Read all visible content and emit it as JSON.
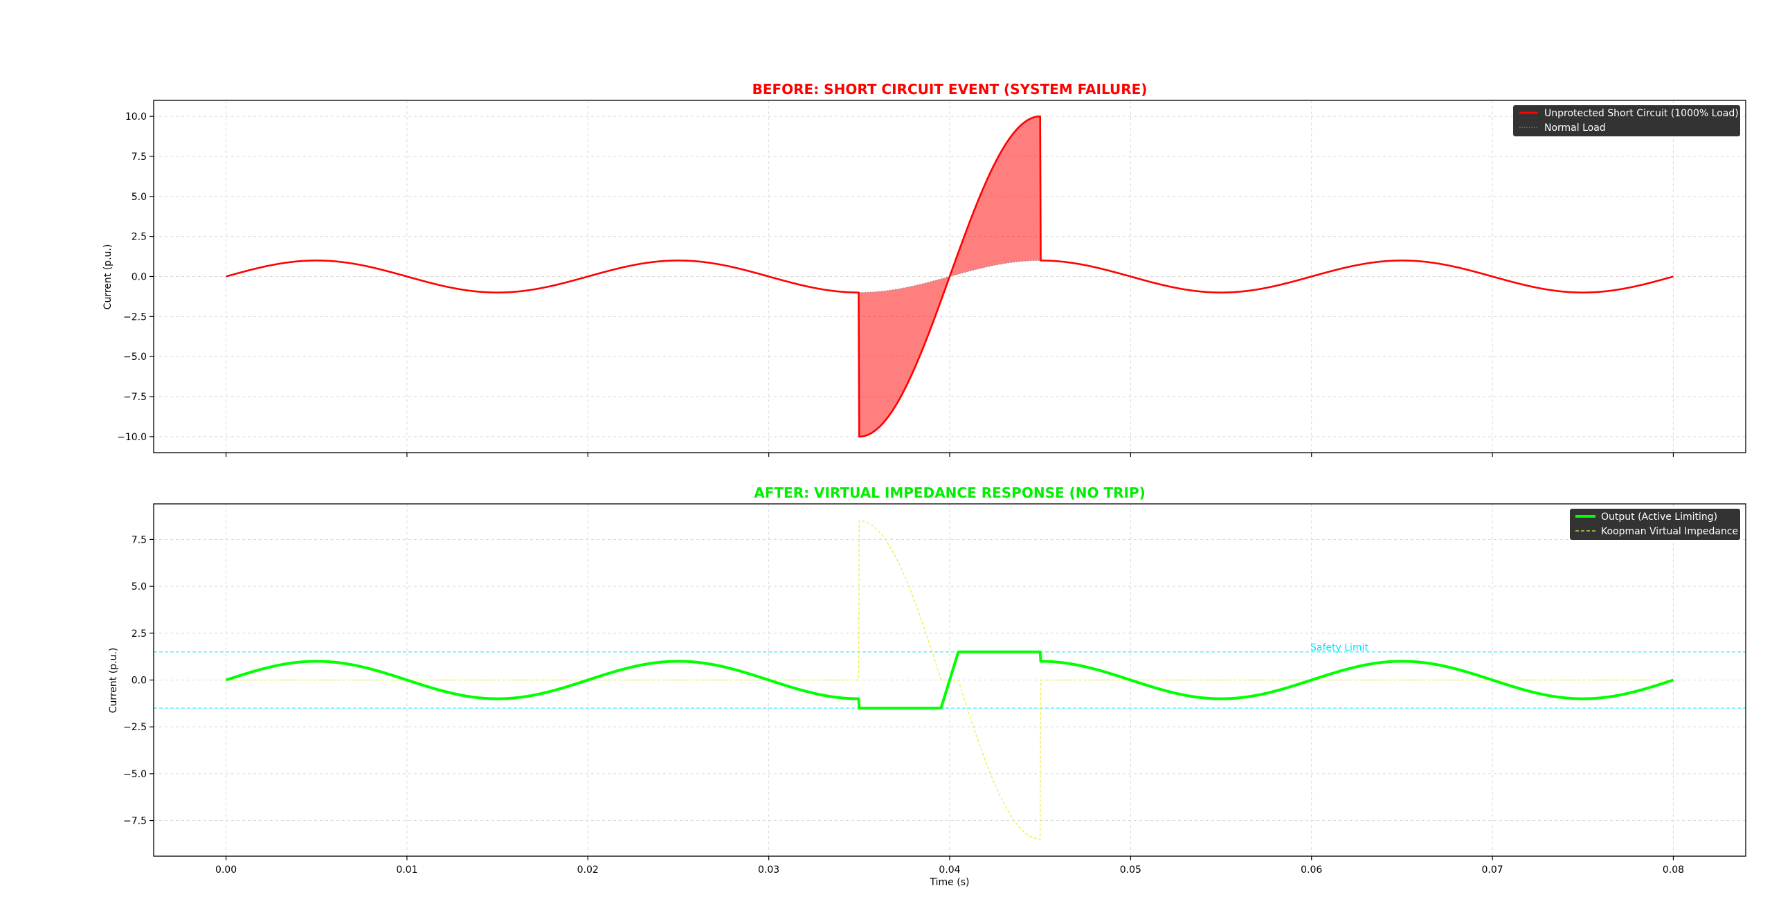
{
  "chart_data": [
    {
      "type": "line",
      "title": "BEFORE: SHORT CIRCUIT EVENT (SYSTEM FAILURE)",
      "title_color": "#ff0000",
      "xlabel": "",
      "ylabel": "Current (p.u.)",
      "xlim": [
        -0.004,
        0.084
      ],
      "ylim": [
        -11.0,
        11.0
      ],
      "xticks": [
        0.0,
        0.01,
        0.02,
        0.03,
        0.04,
        0.05,
        0.06,
        0.07,
        0.08
      ],
      "xtick_labels": [],
      "yticks": [
        -10.0,
        -7.5,
        -5.0,
        -2.5,
        0.0,
        2.5,
        5.0,
        7.5,
        10.0
      ],
      "ytick_labels": [
        "−10.0",
        "−7.5",
        "−5.0",
        "−2.5",
        "0.0",
        "2.5",
        "5.0",
        "7.5",
        "10.0"
      ],
      "grid": true,
      "legend_position": "top-right",
      "legend_bg": "#333333",
      "signal": {
        "frequency_hz": 50,
        "amplitude": 1.0,
        "fault_start": 0.035,
        "fault_end": 0.045,
        "fault_gain": 10,
        "t_end": 0.08
      },
      "fill_between": {
        "between": [
          "Unprotected Short Circuit (1000% Load)",
          "Normal Load"
        ],
        "x_range": [
          0.035,
          0.045
        ],
        "color": "#ff0000",
        "alpha": 0.5
      },
      "series": [
        {
          "name": "Unprotected Short Circuit (1000% Load)",
          "color": "#ff0000",
          "style": "solid",
          "expr": "sin(2*pi*50*t) * (t in [0.035,0.045] ? 10 : 1)"
        },
        {
          "name": "Normal Load",
          "color": "#888888",
          "style": "dotted",
          "expr": "sin(2*pi*50*t)"
        }
      ]
    },
    {
      "type": "line",
      "title": "AFTER: VIRTUAL IMPEDANCE RESPONSE (NO TRIP)",
      "title_color": "#00ee00",
      "xlabel": "Time (s)",
      "ylabel": "Current (p.u.)",
      "xlim": [
        -0.004,
        0.084
      ],
      "ylim": [
        -9.4,
        9.4
      ],
      "xticks": [
        0.0,
        0.01,
        0.02,
        0.03,
        0.04,
        0.05,
        0.06,
        0.07,
        0.08
      ],
      "xtick_labels": [
        "0.00",
        "0.01",
        "0.02",
        "0.03",
        "0.04",
        "0.05",
        "0.06",
        "0.07",
        "0.08"
      ],
      "yticks": [
        -7.5,
        -5.0,
        -2.5,
        0.0,
        2.5,
        5.0,
        7.5
      ],
      "ytick_labels": [
        "−7.5",
        "−5.0",
        "−2.5",
        "0.0",
        "2.5",
        "5.0",
        "7.5"
      ],
      "grid": true,
      "legend_position": "top-right",
      "legend_bg": "#333333",
      "signal": {
        "frequency_hz": 50,
        "amplitude": 1.0,
        "fault_start": 0.035,
        "fault_end": 0.045,
        "fault_gain": 10,
        "limit": 1.5,
        "t_end": 0.08
      },
      "annotation": {
        "text": "Safety Limit",
        "x": 0.06,
        "y": 1.8,
        "color": "#00e5ff"
      },
      "reference_lines": [
        {
          "y": 1.5,
          "color": "#00e5ff",
          "style": "dashed"
        },
        {
          "y": -1.5,
          "color": "#00e5ff",
          "style": "dashed"
        }
      ],
      "series": [
        {
          "name": "Output (Active Limiting)",
          "color": "#00ff00",
          "style": "solid",
          "expr": "clip(raw, -1.5, 1.5) during fault, else sin(2*pi*50*t)"
        },
        {
          "name": "Koopman Virtual Impedance",
          "color": "#eeee44",
          "style": "dashed",
          "expr": "output - raw during fault, else 0"
        }
      ]
    }
  ]
}
